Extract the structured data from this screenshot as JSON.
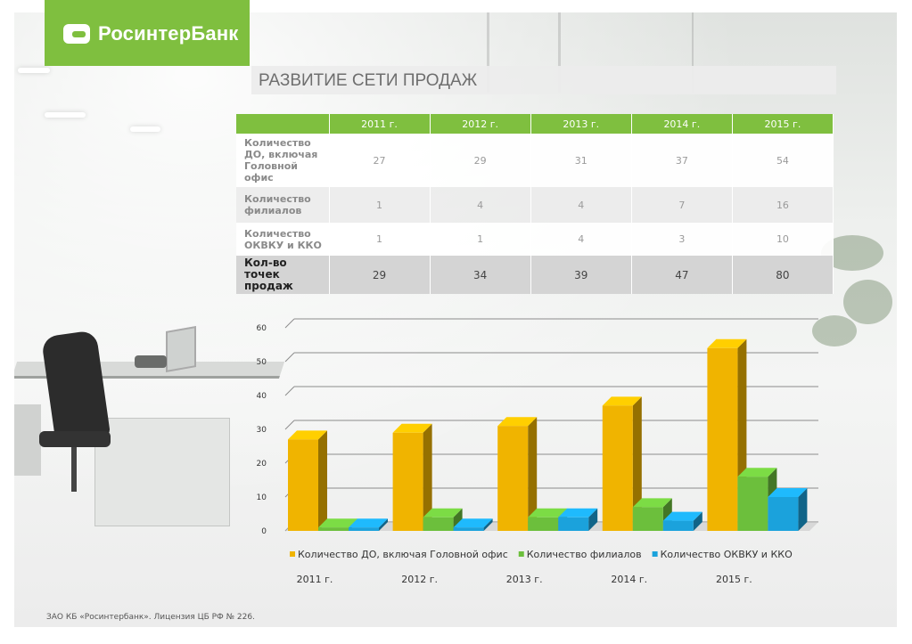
{
  "header": {
    "logo_text": "РосинтерБанк",
    "brand_color": "#7fbf3f"
  },
  "page_title": "РАЗВИТИЕ СЕТИ ПРОДАЖ",
  "table": {
    "columns": [
      "",
      "2011 г.",
      "2012 г.",
      "2013 г.",
      "2014 г.",
      "2015 г."
    ],
    "rows": [
      {
        "label": "Количество ДО, включая Головной офис",
        "values": [
          "27",
          "29",
          "31",
          "37",
          "54"
        ]
      },
      {
        "label": "Количество филиалов",
        "values": [
          "1",
          "4",
          "4",
          "7",
          "16"
        ]
      },
      {
        "label": "Количество ОКВКУ и ККО",
        "values": [
          "1",
          "1",
          "4",
          "3",
          "10"
        ]
      },
      {
        "label": "Кол-во точек продаж",
        "values": [
          "29",
          "34",
          "39",
          "47",
          "80"
        ]
      }
    ]
  },
  "chart_data": {
    "type": "bar",
    "categories": [
      "2011 г.",
      "2012 г.",
      "2013 г.",
      "2014 г.",
      "2015 г."
    ],
    "series": [
      {
        "name": "Количество ДО, включая Головной офис",
        "values": [
          27,
          29,
          31,
          37,
          54
        ],
        "color": "#f0b400"
      },
      {
        "name": "Количество филиалов",
        "values": [
          1,
          4,
          4,
          7,
          16
        ],
        "color": "#6cbf3c"
      },
      {
        "name": "Количество ОКВКУ и ККО",
        "values": [
          1,
          1,
          4,
          3,
          10
        ],
        "color": "#1ba2dc"
      }
    ],
    "ylim": [
      0,
      60
    ],
    "yticks": [
      0,
      10,
      20,
      30,
      40,
      50,
      60
    ],
    "grid": true,
    "legend_position": "bottom",
    "style": "3d-column"
  },
  "footer": {
    "text": "ЗАО КБ «Росинтербанк». Лицензия ЦБ РФ  № 226."
  }
}
